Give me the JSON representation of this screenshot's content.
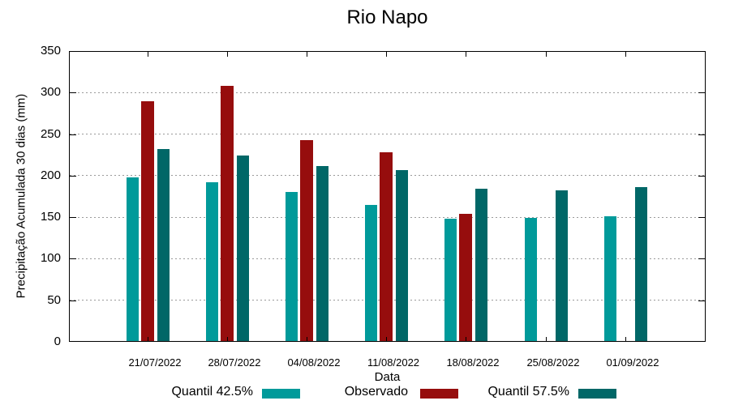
{
  "chart_data": {
    "type": "bar",
    "title": "Rio Napo",
    "xlabel": "Data",
    "ylabel": "Precipitação Acumulada 30 dias (mm)",
    "ylim": [
      0,
      350
    ],
    "yticks": [
      0,
      50,
      100,
      150,
      200,
      250,
      300,
      350
    ],
    "grid": "horizontal-dotted",
    "legend_position": "bottom-center",
    "categories": [
      "21/07/2022",
      "28/07/2022",
      "04/08/2022",
      "11/08/2022",
      "18/08/2022",
      "25/08/2022",
      "01/09/2022"
    ],
    "series": [
      {
        "name": "Quantil 42.5%",
        "color": "#009A9A",
        "values": [
          198,
          192,
          180,
          165,
          148,
          149,
          151
        ]
      },
      {
        "name": "Observado",
        "color": "#960D0D",
        "values": [
          290,
          308,
          243,
          228,
          154,
          null,
          null
        ]
      },
      {
        "name": "Quantil 57.5%",
        "color": "#006767",
        "values": [
          232,
          224,
          212,
          207,
          184,
          182,
          186
        ]
      }
    ],
    "colors": {
      "axis": "#000000",
      "grid": "#9a9a9a",
      "background": "#ffffff"
    }
  }
}
